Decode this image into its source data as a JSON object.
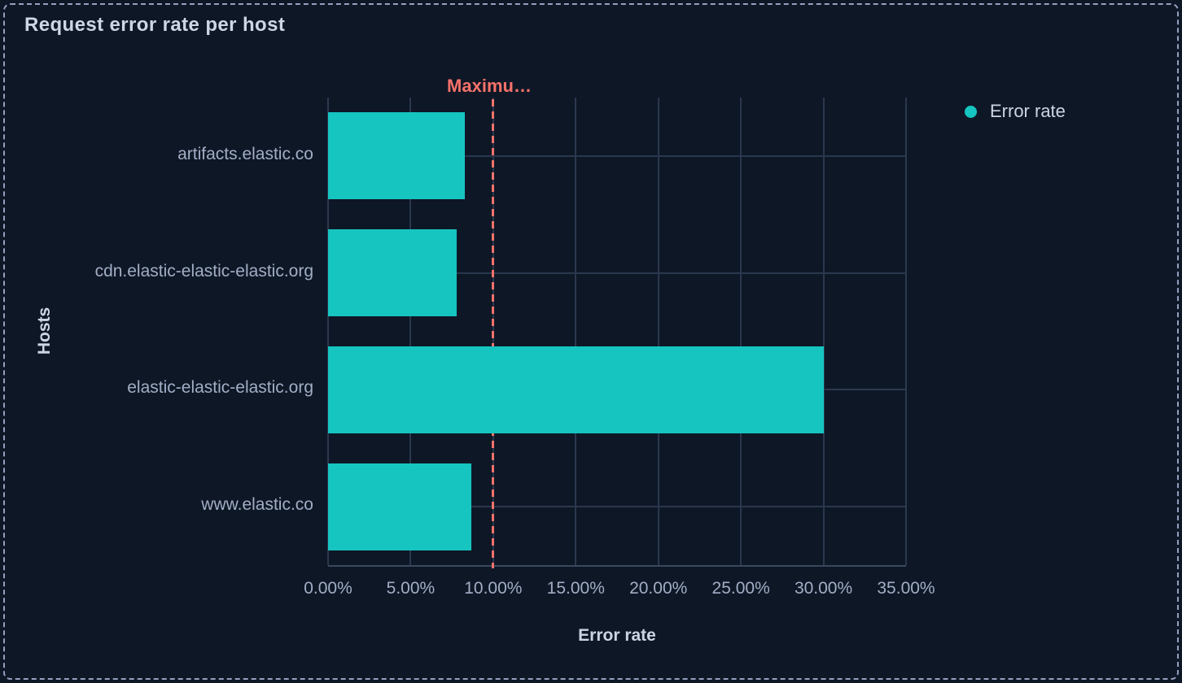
{
  "panel": {
    "title": "Request error rate per host"
  },
  "legend": {
    "items": [
      {
        "label": "Error rate",
        "color": "#16c5c0"
      }
    ]
  },
  "chart_data": {
    "type": "bar",
    "orientation": "horizontal",
    "title": "Request error rate per host",
    "categories": [
      "artifacts.elastic.co",
      "cdn.elastic-elastic-elastic.org",
      "elastic-elastic-elastic.org",
      "www.elastic.co"
    ],
    "series": [
      {
        "name": "Error rate",
        "color": "#16c5c0",
        "values": [
          8.3,
          7.8,
          30.0,
          8.7
        ]
      }
    ],
    "xlabel": "Error rate",
    "ylabel": "Hosts",
    "xlim": [
      0,
      35
    ],
    "x_ticks": [
      0,
      5,
      10,
      15,
      20,
      25,
      30,
      35
    ],
    "x_tick_labels": [
      "0.00%",
      "5.00%",
      "10.00%",
      "15.00%",
      "20.00%",
      "25.00%",
      "30.00%",
      "35.00%"
    ],
    "value_unit": "%",
    "grid": true,
    "legend_position": "right",
    "threshold": {
      "value": 10,
      "label": "Maximu…",
      "color": "#f6726a"
    }
  },
  "colors": {
    "background": "#0e1726",
    "panel_border": "#94a1be",
    "gridline": "#2a384e",
    "axis_line": "#3b495e",
    "bar": "#16c5c0",
    "threshold": "#f6726a",
    "title_text": "#ccd7e6",
    "label_text": "#a1aec5"
  }
}
